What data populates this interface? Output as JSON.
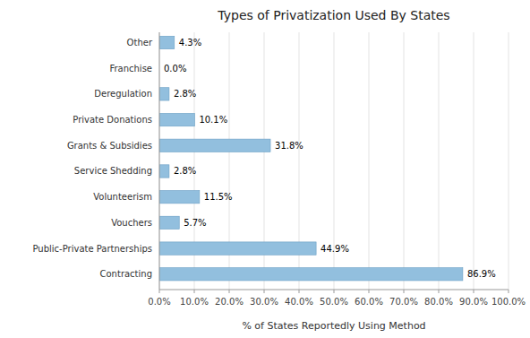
{
  "chart_data": {
    "type": "bar",
    "orientation": "horizontal",
    "title": "Types of Privatization Used By States",
    "xlabel": "% of States Reportedly Using Method",
    "categories": [
      "Contracting",
      "Public-Private Partnerships",
      "Vouchers",
      "Volunteerism",
      "Service Shedding",
      "Grants & Subsidies",
      "Private Donations",
      "Deregulation",
      "Franchise",
      "Other"
    ],
    "values": [
      86.9,
      44.9,
      5.7,
      11.5,
      2.8,
      31.8,
      10.1,
      2.8,
      0.0,
      4.3
    ],
    "value_labels": [
      "86.9%",
      "44.9%",
      "5.7%",
      "11.5%",
      "2.8%",
      "31.8%",
      "10.1%",
      "2.8%",
      "0.0%",
      "4.3%"
    ],
    "data_labels": true,
    "color": "#92BFDE",
    "xlim": [
      0,
      100
    ],
    "xticks": [
      {
        "value": 0,
        "label": "0.0%"
      },
      {
        "value": 10,
        "label": "10.0%"
      },
      {
        "value": 20,
        "label": "20.0%"
      },
      {
        "value": 30,
        "label": "30.0%"
      },
      {
        "value": 40,
        "label": "40.0%"
      },
      {
        "value": 50,
        "label": "50.0%"
      },
      {
        "value": 60,
        "label": "60.0%"
      },
      {
        "value": 70,
        "label": "70.0%"
      },
      {
        "value": 80,
        "label": "80.0%"
      },
      {
        "value": 90,
        "label": "90.0%"
      },
      {
        "value": 100,
        "label": "100.0%"
      }
    ],
    "grid": true
  }
}
